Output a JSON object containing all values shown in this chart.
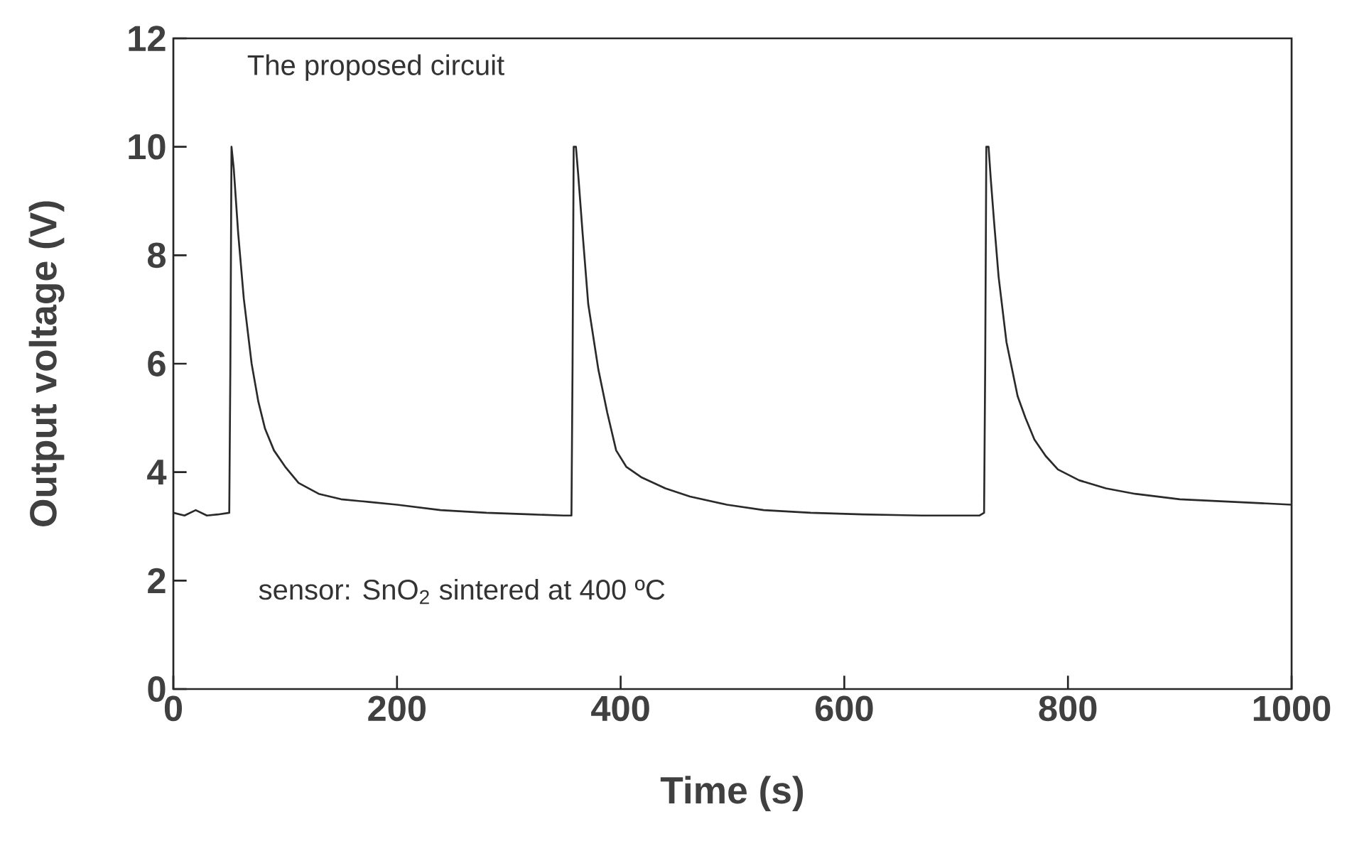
{
  "chart_data": {
    "type": "line",
    "xlabel": "Time (s)",
    "ylabel": "Output voltage (V)",
    "annotations": [
      "The proposed circuit",
      "sensor: SnO$_{2}$ sintered at 400 ºC"
    ],
    "xlim": [
      0,
      1000
    ],
    "ylim": [
      0,
      12
    ],
    "xticks": [
      0,
      200,
      400,
      600,
      800,
      1000
    ],
    "yticks": [
      0,
      2,
      4,
      6,
      8,
      10,
      12
    ],
    "grid": false,
    "marker": "none",
    "line_style": "solid",
    "series": [
      {
        "color": "#2a2a2a",
        "x": [
          0,
          10,
          20,
          30,
          40,
          50,
          51,
          52,
          54,
          58,
          63,
          70,
          76,
          82,
          90,
          100,
          112,
          130,
          150,
          175,
          200,
          239,
          280,
          320,
          349,
          356,
          357,
          358,
          360,
          362,
          366,
          371,
          380,
          388,
          396,
          405,
          419,
          440,
          462,
          495,
          528,
          570,
          616,
          670,
          721,
          725,
          726,
          727,
          729,
          731,
          734,
          738,
          745,
          755,
          762,
          770,
          780,
          791,
          810,
          834,
          860,
          900,
          950,
          1000
        ],
        "values": [
          3.25,
          3.2,
          3.3,
          3.2,
          3.22,
          3.25,
          6.0,
          10.0,
          9.6,
          8.4,
          7.2,
          6.0,
          5.3,
          4.8,
          4.4,
          4.1,
          3.8,
          3.6,
          3.5,
          3.45,
          3.4,
          3.3,
          3.25,
          3.22,
          3.2,
          3.2,
          6.0,
          10.0,
          10.0,
          9.5,
          8.4,
          7.1,
          5.9,
          5.1,
          4.4,
          4.1,
          3.9,
          3.7,
          3.55,
          3.4,
          3.3,
          3.25,
          3.22,
          3.2,
          3.2,
          3.25,
          6.0,
          10.0,
          10.0,
          9.4,
          8.6,
          7.6,
          6.4,
          5.4,
          5.0,
          4.6,
          4.3,
          4.05,
          3.85,
          3.7,
          3.6,
          3.5,
          3.45,
          3.4
        ]
      }
    ]
  }
}
